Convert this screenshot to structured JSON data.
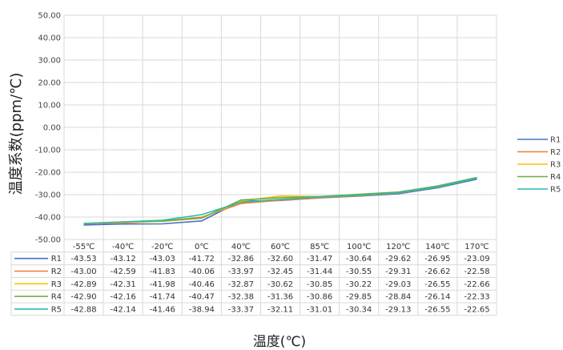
{
  "chart_data": {
    "type": "line",
    "title": "",
    "xlabel": "温度(℃)",
    "ylabel": "温度系数(ppm/℃)",
    "ylim": [
      -50,
      50
    ],
    "y_ticks": [
      "50.00",
      "40.00",
      "30.00",
      "20.00",
      "10.00",
      "0.00",
      "-10.00",
      "-20.00",
      "-30.00",
      "-40.00",
      "-50.00"
    ],
    "grid": true,
    "legend_position": "right",
    "categories": [
      "-55℃",
      "-40℃",
      "-20℃",
      "0℃",
      "40℃",
      "60℃",
      "85℃",
      "100℃",
      "120℃",
      "140℃",
      "170℃"
    ],
    "series": [
      {
        "name": "R1",
        "color": "#4472C4",
        "values": [
          -43.53,
          -43.12,
          -43.03,
          -41.72,
          -32.86,
          -32.6,
          -31.47,
          -30.64,
          -29.62,
          -26.95,
          -23.09
        ]
      },
      {
        "name": "R2",
        "color": "#ED7D31",
        "values": [
          -43.0,
          -42.59,
          -41.83,
          -40.06,
          -33.97,
          -32.45,
          -31.44,
          -30.55,
          -29.31,
          -26.62,
          -22.58
        ]
      },
      {
        "name": "R3",
        "color": "#FFC000",
        "values": [
          -42.89,
          -42.31,
          -41.98,
          -40.46,
          -32.87,
          -30.62,
          -30.85,
          -30.22,
          -29.03,
          -26.55,
          -22.66
        ]
      },
      {
        "name": "R4",
        "color": "#70AD47",
        "values": [
          -42.9,
          -42.16,
          -41.74,
          -40.47,
          -32.38,
          -31.36,
          -30.86,
          -29.85,
          -28.84,
          -26.14,
          -22.33
        ]
      },
      {
        "name": "R5",
        "color": "#2ABBB0",
        "values": [
          -42.88,
          -42.14,
          -41.46,
          -38.94,
          -33.37,
          -32.11,
          -31.01,
          -30.34,
          -29.13,
          -26.55,
          -22.65
        ]
      }
    ],
    "table": {
      "rows": [
        {
          "name": "R1",
          "values": [
            "-43.53",
            "-43.12",
            "-43.03",
            "-41.72",
            "-32.86",
            "-32.60",
            "-31.47",
            "-30.64",
            "-29.62",
            "-26.95",
            "-23.09"
          ]
        },
        {
          "name": "R2",
          "values": [
            "-43.00",
            "-42.59",
            "-41.83",
            "-40.06",
            "-33.97",
            "-32.45",
            "-31.44",
            "-30.55",
            "-29.31",
            "-26.62",
            "-22.58"
          ]
        },
        {
          "name": "R3",
          "values": [
            "-42.89",
            "-42.31",
            "-41.98",
            "-40.46",
            "-32.87",
            "-30.62",
            "-30.85",
            "-30.22",
            "-29.03",
            "-26.55",
            "-22.66"
          ]
        },
        {
          "name": "R4",
          "values": [
            "-42.90",
            "-42.16",
            "-41.74",
            "-40.47",
            "-32.38",
            "-31.36",
            "-30.86",
            "-29.85",
            "-28.84",
            "-26.14",
            "-22.33"
          ]
        },
        {
          "name": "R5",
          "values": [
            "-42.88",
            "-42.14",
            "-41.46",
            "-38.94",
            "-33.37",
            "-32.11",
            "-31.01",
            "-30.34",
            "-29.13",
            "-26.55",
            "-22.65"
          ]
        }
      ]
    }
  }
}
